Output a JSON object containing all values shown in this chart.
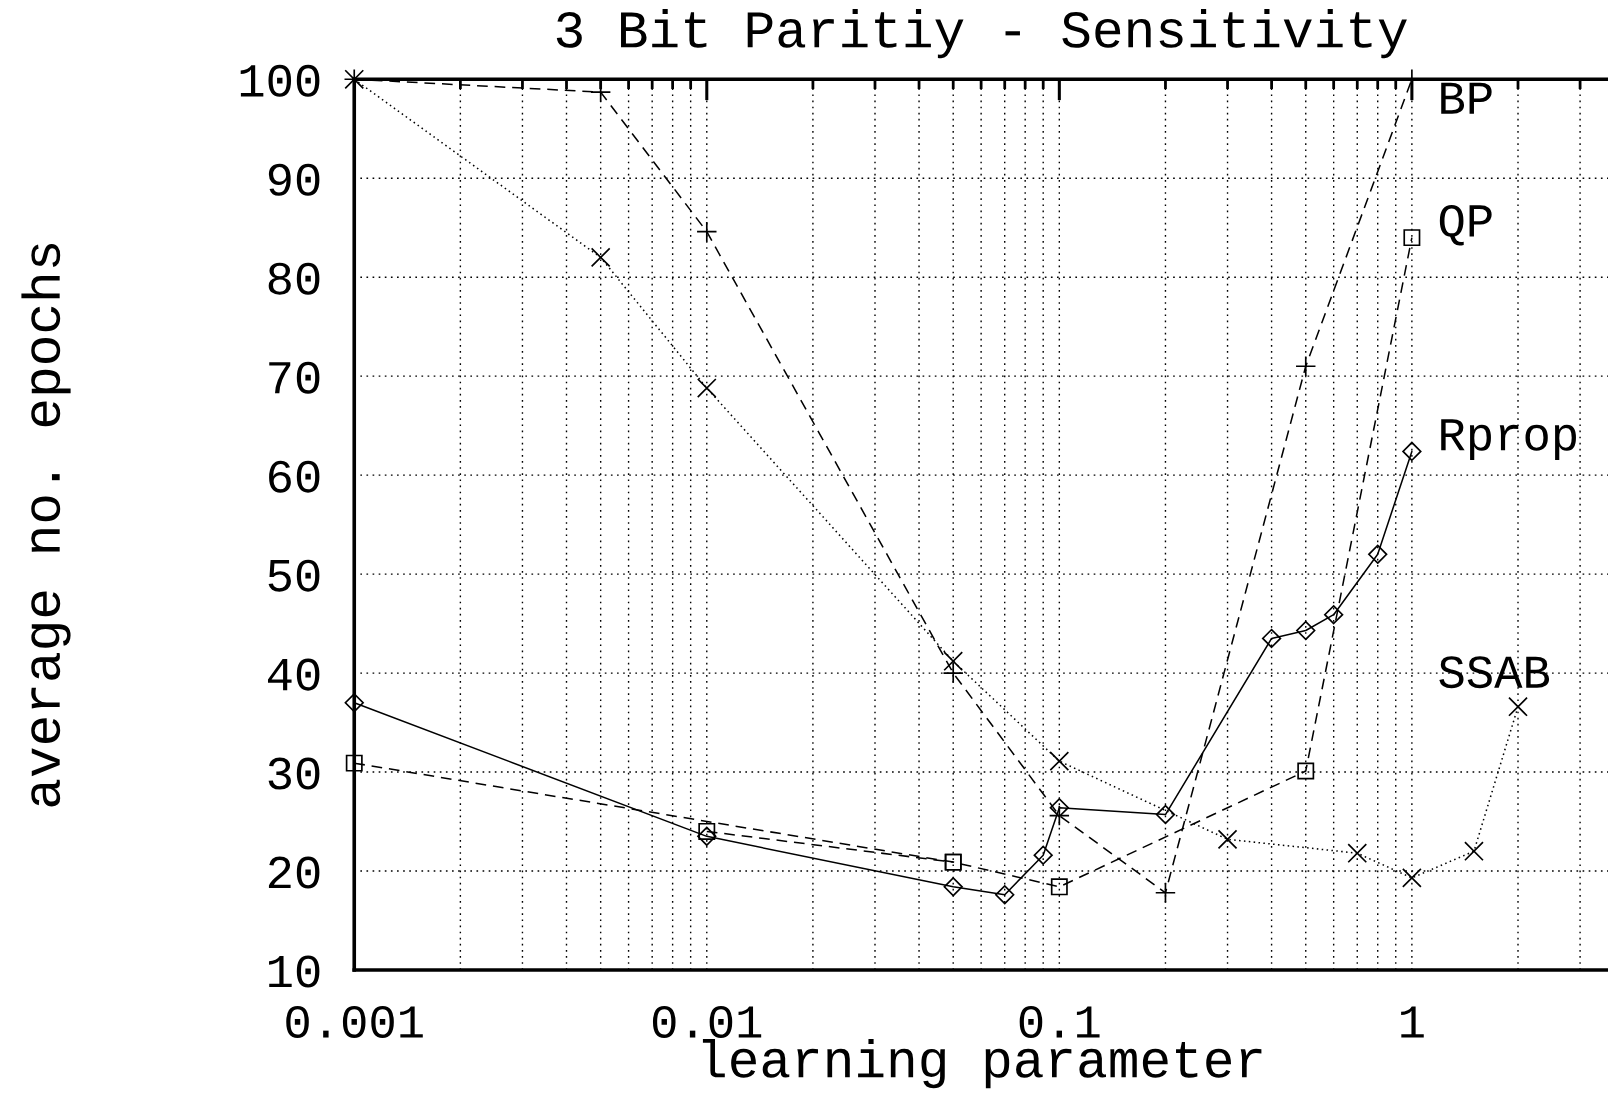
{
  "chart_data": {
    "type": "line",
    "title": "3 Bit Paritiy - Sensitivity",
    "xlabel": "learning parameter",
    "ylabel": "average no. epochs",
    "log": "x",
    "grid": true,
    "xlim": [
      0.001,
      3.6
    ],
    "ylim": [
      10,
      100
    ],
    "xticks": [
      {
        "value": 0.001,
        "label": "0.001"
      },
      {
        "value": 0.002,
        "label": null
      },
      {
        "value": 0.003,
        "label": null
      },
      {
        "value": 0.004,
        "label": null
      },
      {
        "value": 0.005,
        "label": null
      },
      {
        "value": 0.006,
        "label": null
      },
      {
        "value": 0.007,
        "label": null
      },
      {
        "value": 0.008,
        "label": null
      },
      {
        "value": 0.009,
        "label": null
      },
      {
        "value": 0.01,
        "label": "0.01"
      },
      {
        "value": 0.02,
        "label": null
      },
      {
        "value": 0.03,
        "label": null
      },
      {
        "value": 0.04,
        "label": null
      },
      {
        "value": 0.05,
        "label": null
      },
      {
        "value": 0.06,
        "label": null
      },
      {
        "value": 0.07,
        "label": null
      },
      {
        "value": 0.08,
        "label": null
      },
      {
        "value": 0.09,
        "label": null
      },
      {
        "value": 0.1,
        "label": "0.1"
      },
      {
        "value": 0.2,
        "label": null
      },
      {
        "value": 0.3,
        "label": null
      },
      {
        "value": 0.4,
        "label": null
      },
      {
        "value": 0.5,
        "label": null
      },
      {
        "value": 0.6,
        "label": null
      },
      {
        "value": 0.7,
        "label": null
      },
      {
        "value": 0.8,
        "label": null
      },
      {
        "value": 0.9,
        "label": null
      },
      {
        "value": 1,
        "label": "1"
      },
      {
        "value": 2,
        "label": null
      },
      {
        "value": 3,
        "label": null
      }
    ],
    "yticks": [
      10,
      20,
      30,
      40,
      50,
      60,
      70,
      80,
      90,
      100
    ],
    "series": [
      {
        "name": "BP",
        "color": "#000000",
        "marker": "plus",
        "line_style": "dashed",
        "x": [
          0.001,
          0.005,
          0.01,
          0.05,
          0.1,
          0.2,
          0.5,
          1
        ],
        "values": [
          100,
          98.7,
          84.6,
          40.0,
          25.6,
          17.8,
          71.0,
          100
        ]
      },
      {
        "name": "QP",
        "color": "#000000",
        "marker": "square",
        "line_style": "dashed",
        "x": [
          0.001,
          0.05,
          0.1,
          0.5,
          1
        ],
        "values": [
          30.9,
          20.9,
          18.4,
          30.1,
          84.0
        ]
      },
      {
        "color": "#000000",
        "marker": "square",
        "line_style": "dashed",
        "x": [
          0.01,
          0.05
        ],
        "values": [
          24.0,
          20.9
        ]
      },
      {
        "name": "Rprop",
        "color": "#000000",
        "marker": "diamond",
        "line_style": "solid",
        "x": [
          0.001,
          0.01,
          0.05,
          0.07,
          0.09,
          0.1,
          0.2,
          0.4,
          0.5,
          0.6,
          0.8,
          1
        ],
        "values": [
          37.0,
          23.5,
          18.4,
          17.6,
          21.6,
          26.4,
          25.7,
          43.5,
          44.3,
          45.9,
          52.0,
          62.4
        ]
      },
      {
        "name": "SSAB",
        "color": "#000000",
        "marker": "cross",
        "line_style": "dotted",
        "x": [
          0.001,
          0.005,
          0.01,
          0.05,
          0.1,
          0.3,
          0.7,
          1,
          1.5,
          2
        ],
        "values": [
          100,
          82.0,
          68.8,
          41.2,
          31.1,
          23.2,
          21.8,
          19.3,
          22.0,
          36.6
        ]
      }
    ]
  }
}
